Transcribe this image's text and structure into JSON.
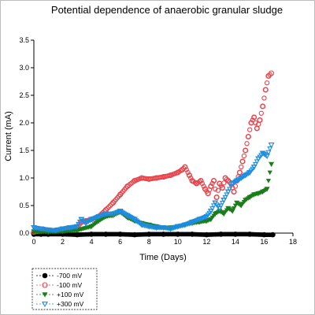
{
  "chart_data": {
    "type": "scatter",
    "title": "Potential dependence of anaerobic granular sludge",
    "xlabel": "Time (Days)",
    "ylabel": "Current (mA)",
    "xlim": [
      0,
      18
    ],
    "ylim": [
      0,
      3.5
    ],
    "xticks": [
      "0",
      "2",
      "4",
      "6",
      "8",
      "10",
      "12",
      "14",
      "16",
      "18"
    ],
    "yticks": [
      "0.0",
      "0.5",
      "1.0",
      "1.5",
      "2.0",
      "2.5",
      "3.0",
      "3.5"
    ],
    "legend_position": "bottom-left",
    "grid": false,
    "series": [
      {
        "name": "-700 mV",
        "color": "#000000",
        "marker": "circle-filled",
        "x": [
          0,
          0.5,
          1,
          2,
          3,
          4,
          5,
          6,
          7,
          8,
          9,
          10,
          11,
          12,
          13,
          14,
          15,
          16,
          16.6
        ],
        "y": [
          -0.02,
          -0.02,
          -0.02,
          -0.02,
          -0.03,
          -0.02,
          -0.02,
          -0.02,
          -0.03,
          -0.02,
          -0.02,
          -0.02,
          -0.02,
          -0.03,
          -0.02,
          -0.02,
          -0.02,
          -0.03,
          -0.03
        ]
      },
      {
        "name": "-100 mV",
        "color": "#e8434a",
        "marker": "circle-open",
        "x": [
          0,
          0.5,
          1,
          1.5,
          2,
          2.5,
          3,
          3.3,
          3.6,
          4,
          4.5,
          5,
          5.5,
          6,
          6.5,
          7,
          7.5,
          8,
          8.5,
          9,
          9.5,
          10,
          10.3,
          10.5,
          10.8,
          11,
          11.3,
          11.6,
          11.9,
          12.1,
          12.3,
          12.5,
          12.7,
          12.9,
          13.1,
          13.3,
          13.5,
          13.7,
          13.9,
          14.1,
          14.3,
          14.5,
          14.7,
          14.9,
          15.1,
          15.3,
          15.5,
          15.7,
          15.9,
          16.1,
          16.3,
          16.5
        ],
        "y": [
          0.02,
          0.04,
          0.05,
          0.05,
          0.06,
          0.07,
          0.1,
          0.2,
          0.22,
          0.25,
          0.3,
          0.42,
          0.55,
          0.7,
          0.85,
          0.95,
          1.0,
          0.98,
          1.0,
          1.02,
          1.05,
          1.1,
          1.15,
          1.2,
          1.05,
          0.95,
          0.9,
          0.95,
          0.8,
          0.72,
          0.85,
          0.95,
          0.65,
          0.9,
          0.82,
          1.0,
          0.95,
          0.9,
          0.75,
          0.95,
          1.1,
          1.3,
          1.5,
          1.75,
          2.0,
          2.1,
          1.9,
          2.05,
          2.3,
          2.6,
          2.85,
          2.9
        ]
      },
      {
        "name": "+100 mV",
        "color": "#1a7d1a",
        "marker": "triangle-down-filled",
        "x": [
          0,
          1,
          2,
          3,
          4,
          4.5,
          5,
          5.5,
          6,
          6.5,
          7,
          7.5,
          8,
          8.5,
          9,
          9.5,
          10,
          10.5,
          11,
          11.5,
          12,
          12.3,
          12.6,
          12.9,
          13.2,
          13.5,
          13.8,
          14.1,
          14.4,
          14.7,
          15,
          15.3,
          15.6,
          15.9,
          16.2,
          16.5
        ],
        "y": [
          0.03,
          0.02,
          0.03,
          0.05,
          0.12,
          0.22,
          0.3,
          0.32,
          0.38,
          0.28,
          0.22,
          0.18,
          0.15,
          0.12,
          0.1,
          0.1,
          0.12,
          0.15,
          0.18,
          0.2,
          0.22,
          0.25,
          0.35,
          0.4,
          0.35,
          0.45,
          0.4,
          0.55,
          0.5,
          0.6,
          0.65,
          0.7,
          0.72,
          0.75,
          0.8,
          1.25
        ]
      },
      {
        "name": "+300 mV",
        "color": "#1e8de0",
        "marker": "triangle-down-open",
        "x": [
          0,
          0.5,
          1,
          1.5,
          2,
          2.5,
          3,
          3.3,
          3.6,
          4,
          4.5,
          5,
          5.5,
          6,
          6.5,
          7,
          7.5,
          8,
          8.5,
          9,
          9.5,
          10,
          10.5,
          11,
          11.5,
          12,
          12.3,
          12.6,
          12.9,
          13.2,
          13.5,
          13.8,
          14.1,
          14.4,
          14.7,
          15,
          15.3,
          15.6,
          15.9,
          16.2,
          16.5
        ],
        "y": [
          0.1,
          0.08,
          0.06,
          0.05,
          0.08,
          0.1,
          0.12,
          0.25,
          0.18,
          0.25,
          0.3,
          0.35,
          0.35,
          0.4,
          0.32,
          0.25,
          0.15,
          0.12,
          0.1,
          0.1,
          0.08,
          0.12,
          0.15,
          0.2,
          0.25,
          0.3,
          0.4,
          0.55,
          0.45,
          0.6,
          0.75,
          0.9,
          0.95,
          1.0,
          1.05,
          1.1,
          1.2,
          1.35,
          1.45,
          1.4,
          1.6
        ]
      }
    ]
  }
}
